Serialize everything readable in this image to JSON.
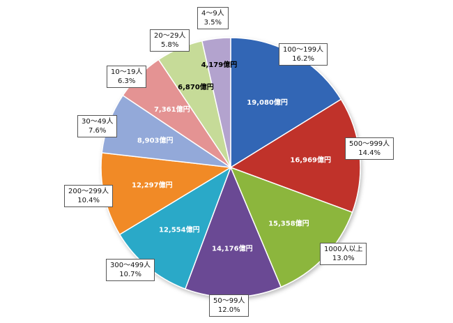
{
  "chart_data": {
    "type": "pie",
    "title": "",
    "value_unit": "億円",
    "slices": [
      {
        "category": "100～199人",
        "value_label": "19,080億円",
        "value": 19080,
        "percent_label": "16.2%",
        "color": "#3366b5",
        "text_color": "#ffffff"
      },
      {
        "category": "500～999人",
        "value_label": "16,969億円",
        "value": 16969,
        "percent_label": "14.4%",
        "color": "#c0302c",
        "text_color": "#ffffff"
      },
      {
        "category": "1000人以上",
        "value_label": "15,358億円",
        "value": 15358,
        "percent_label": "13.0%",
        "color": "#8cb63e",
        "text_color": "#ffffff"
      },
      {
        "category": "50～99人",
        "value_label": "14,176億円",
        "value": 14176,
        "percent_label": "12.0%",
        "color": "#6a4a94",
        "text_color": "#ffffff"
      },
      {
        "category": "300～499人",
        "value_label": "12,554億円",
        "value": 12554,
        "percent_label": "10.7%",
        "color": "#2ba9c8",
        "text_color": "#ffffff"
      },
      {
        "category": "200～299人",
        "value_label": "12,297億円",
        "value": 12297,
        "percent_label": "10.4%",
        "color": "#f18a26",
        "text_color": "#ffffff"
      },
      {
        "category": "30～49人",
        "value_label": "8,903億円",
        "value": 8903,
        "percent_label": "7.6%",
        "color": "#93a9d9",
        "text_color": "#ffffff"
      },
      {
        "category": "10～19人",
        "value_label": "7,361億円",
        "value": 7361,
        "percent_label": "6.3%",
        "color": "#e49393",
        "text_color": "#ffffff"
      },
      {
        "category": "20～29人",
        "value_label": "6,870億円",
        "value": 6870,
        "percent_label": "5.8%",
        "color": "#c6db98",
        "text_color": "#000000"
      },
      {
        "category": "4～9人",
        "value_label": "4,179億円",
        "value": 4179,
        "percent_label": "3.5%",
        "color": "#b3a3ce",
        "text_color": "#000000"
      }
    ]
  }
}
